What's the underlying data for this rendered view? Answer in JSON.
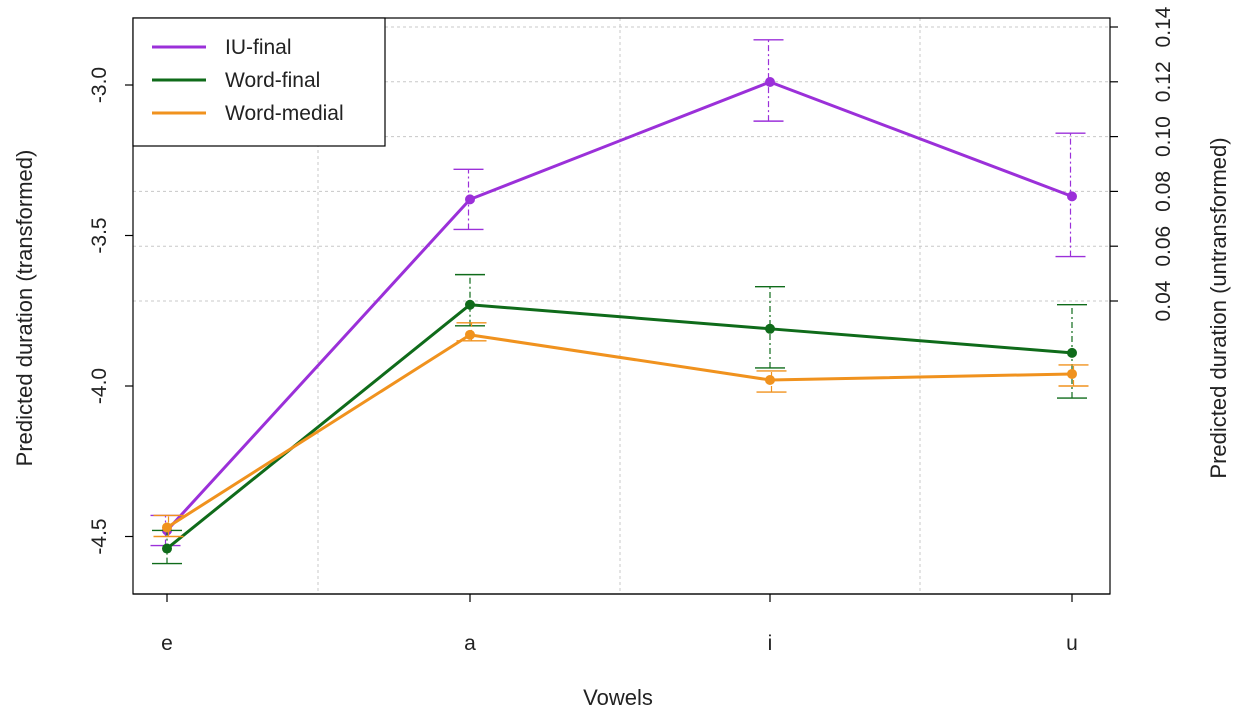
{
  "chart_data": {
    "type": "line",
    "title": "",
    "xlabel": "Vowels",
    "ylabel": "Predicted duration (transformed)",
    "y2label": "Predicted duration (untransformed)",
    "categories": [
      "e",
      "a",
      "i",
      "u"
    ],
    "ylim": [
      -4.63,
      -2.77
    ],
    "yticks": [
      -3.0,
      -3.5,
      -4.0,
      -4.5
    ],
    "ytick_labels": [
      "-3.0",
      "-3.5",
      "-4.0",
      "-4.5"
    ],
    "y2ticks": [
      0.04,
      0.06,
      0.08,
      0.1,
      0.12,
      0.14
    ],
    "y2tick_labels": [
      "0.04",
      "0.06",
      "0.08",
      "0.10",
      "0.12",
      "0.14"
    ],
    "grid": true,
    "legend_position": "top-left",
    "series": [
      {
        "name": "IU-final",
        "color": "#9b30d9",
        "values": [
          -4.48,
          -3.38,
          -2.99,
          -3.37
        ],
        "err_low": [
          -4.53,
          -3.48,
          -3.12,
          -3.57
        ],
        "err_high": [
          -4.43,
          -3.28,
          -2.85,
          -3.16
        ]
      },
      {
        "name": "Word-final",
        "color": "#0f6b1a",
        "values": [
          -4.54,
          -3.73,
          -3.81,
          -3.89
        ],
        "err_low": [
          -4.59,
          -3.8,
          -3.94,
          -4.04
        ],
        "err_high": [
          -4.48,
          -3.63,
          -3.67,
          -3.73
        ]
      },
      {
        "name": "Word-medial",
        "color": "#f0921e",
        "values": [
          -4.47,
          -3.83,
          -3.98,
          -3.96
        ],
        "err_low": [
          -4.5,
          -3.85,
          -4.02,
          -4.0
        ],
        "err_high": [
          -4.43,
          -3.79,
          -3.95,
          -3.93
        ]
      }
    ]
  }
}
